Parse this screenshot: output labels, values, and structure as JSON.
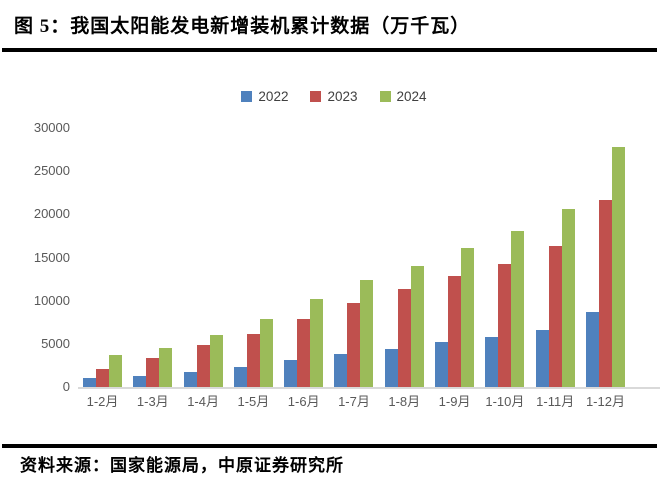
{
  "header": {
    "title": "图 5：我国太阳能发电新增装机累计数据（万千瓦）"
  },
  "footer": {
    "source": "资料来源：国家能源局，中原证券研究所"
  },
  "chart_data": {
    "type": "bar",
    "title": "图 5：我国太阳能发电新增装机累计数据（万千瓦）",
    "categories": [
      "1-2月",
      "1-3月",
      "1-4月",
      "1-5月",
      "1-6月",
      "1-7月",
      "1-8月",
      "1-9月",
      "1-10月",
      "1-11月",
      "1-12月"
    ],
    "series": [
      {
        "name": "2022",
        "color": "#4F81BD",
        "values": [
          1086,
          1321,
          1688,
          2371,
          3088,
          3773,
          4447,
          5260,
          5824,
          6571,
          8741
        ]
      },
      {
        "name": "2023",
        "color": "#C0504D",
        "values": [
          2037,
          3366,
          4831,
          6121,
          7842,
          9716,
          11316,
          12894,
          14256,
          16388,
          21688
        ]
      },
      {
        "name": "2024",
        "color": "#9BBB59",
        "values": [
          3672,
          4574,
          6011,
          7915,
          10248,
          12353,
          13999,
          16088,
          18130,
          20630,
          27757
        ]
      }
    ],
    "xlabel": "",
    "ylabel": "",
    "ylim": [
      0,
      30000
    ],
    "ytick_interval": 5000,
    "ytick_labels": [
      "0",
      "5000",
      "10000",
      "15000",
      "20000",
      "25000",
      "30000"
    ],
    "grid": false,
    "legend_position": "top-center",
    "axis_text_color": "#595959",
    "baseline_color": "#D9D9D9"
  }
}
